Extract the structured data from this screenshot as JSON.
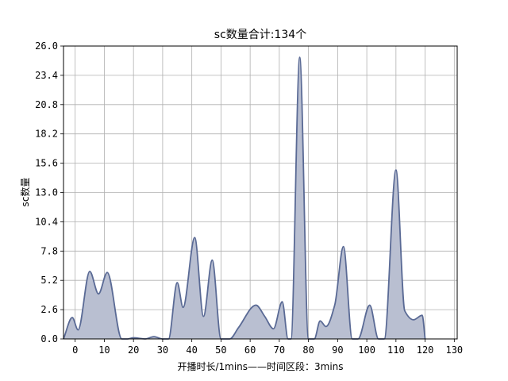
{
  "chart_data": {
    "type": "area",
    "title": "sc数量合计:134个",
    "xlabel": "开播时长/1mins——时间区段：3mins",
    "ylabel": "sc数量",
    "xlim": [
      -4,
      131
    ],
    "ylim": [
      0,
      26.0
    ],
    "xticks": [
      0,
      10,
      20,
      30,
      40,
      50,
      60,
      70,
      80,
      90,
      100,
      110,
      120,
      130
    ],
    "yticks": [
      "0.0",
      "2.6",
      "5.2",
      "7.8",
      "10.4",
      "13.0",
      "15.6",
      "18.2",
      "20.8",
      "23.4",
      "26.0"
    ],
    "grid": true,
    "series": [
      {
        "color": "#5a6a95",
        "fill_color": "#b9bfd1",
        "x": [
          -4,
          -1,
          1,
          5,
          8,
          11,
          16,
          18,
          20,
          24,
          27,
          30,
          32,
          35,
          37,
          41,
          44,
          47,
          50,
          53,
          56,
          62,
          65,
          68,
          71,
          73,
          74,
          77,
          80,
          82,
          84,
          86,
          89,
          92,
          95,
          97,
          101,
          104,
          106,
          110,
          113,
          116,
          119,
          120
        ],
        "y": [
          0,
          1.9,
          0.8,
          6.0,
          4.0,
          5.9,
          0,
          0,
          0.1,
          0,
          0.2,
          0,
          0,
          5.0,
          2.8,
          9.0,
          2.0,
          7.0,
          0,
          0,
          1.0,
          3.0,
          2.0,
          0.9,
          3.3,
          0,
          0,
          25.0,
          0,
          0,
          1.6,
          1.1,
          3.0,
          8.2,
          0,
          0,
          3.0,
          0,
          0,
          15.0,
          2.5,
          1.7,
          2.1,
          0
        ]
      }
    ]
  }
}
